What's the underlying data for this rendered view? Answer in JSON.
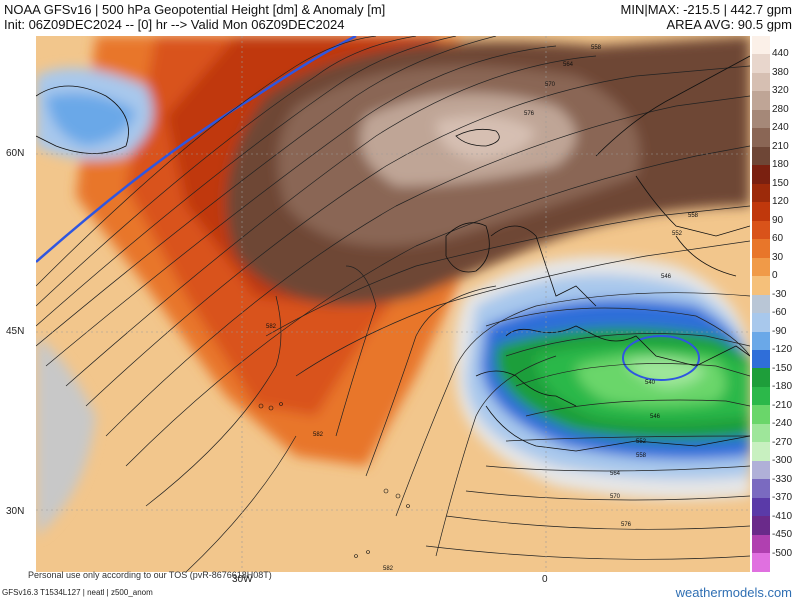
{
  "header": {
    "title_line1": "NOAA GFSv16 | 500 hPa Geopotential Height [dm] & Anomaly [m]",
    "title_line2": "Init: 06Z09DEC2024 -- [0] hr --> Valid Mon 06Z09DEC2024",
    "minmax": "MIN|MAX: -215.5 | 442.7 gpm",
    "area_avg": "AREA AVG: 90.5 gpm"
  },
  "axes": {
    "lat_labels": [
      "60N",
      "45N",
      "30N"
    ],
    "lon_labels": [
      "30W",
      "0"
    ]
  },
  "contour_labels": [
    "558",
    "564",
    "570",
    "576",
    "558",
    "552",
    "546",
    "582",
    "582",
    "540",
    "546",
    "552",
    "558",
    "564",
    "570",
    "576",
    "582"
  ],
  "colorbar": {
    "labels": [
      "440",
      "380",
      "320",
      "280",
      "240",
      "210",
      "180",
      "150",
      "120",
      "90",
      "60",
      "30",
      "0",
      "-30",
      "-60",
      "-90",
      "-120",
      "-150",
      "-180",
      "-210",
      "-240",
      "-270",
      "-300",
      "-330",
      "-370",
      "-410",
      "-450",
      "-500"
    ],
    "colors": [
      "#fbf0e8",
      "#e8d6cc",
      "#d6bfb2",
      "#bfa596",
      "#a58878",
      "#8a6655",
      "#6e4636",
      "#7a2010",
      "#9c2a0a",
      "#c0380c",
      "#d9531a",
      "#e8762a",
      "#f09a48",
      "#f5c07a",
      "#b9c6d6",
      "#a8c8ec",
      "#6aa8e8",
      "#2f6ed9",
      "#1e9e3a",
      "#2cb84a",
      "#6ad66a",
      "#9ee69a",
      "#c8f0c0",
      "#b0b0d8",
      "#7a6ac0",
      "#5a3aa8",
      "#6a2a8a",
      "#b040b0",
      "#e070e0"
    ]
  },
  "footer": {
    "model_info": "GFSv16.3 T1534L127 | neatl | z500_anom",
    "personal_use": "Personal use only according to our TOS (pvR-8676618H08T)",
    "brand": "weathermodels.com"
  }
}
